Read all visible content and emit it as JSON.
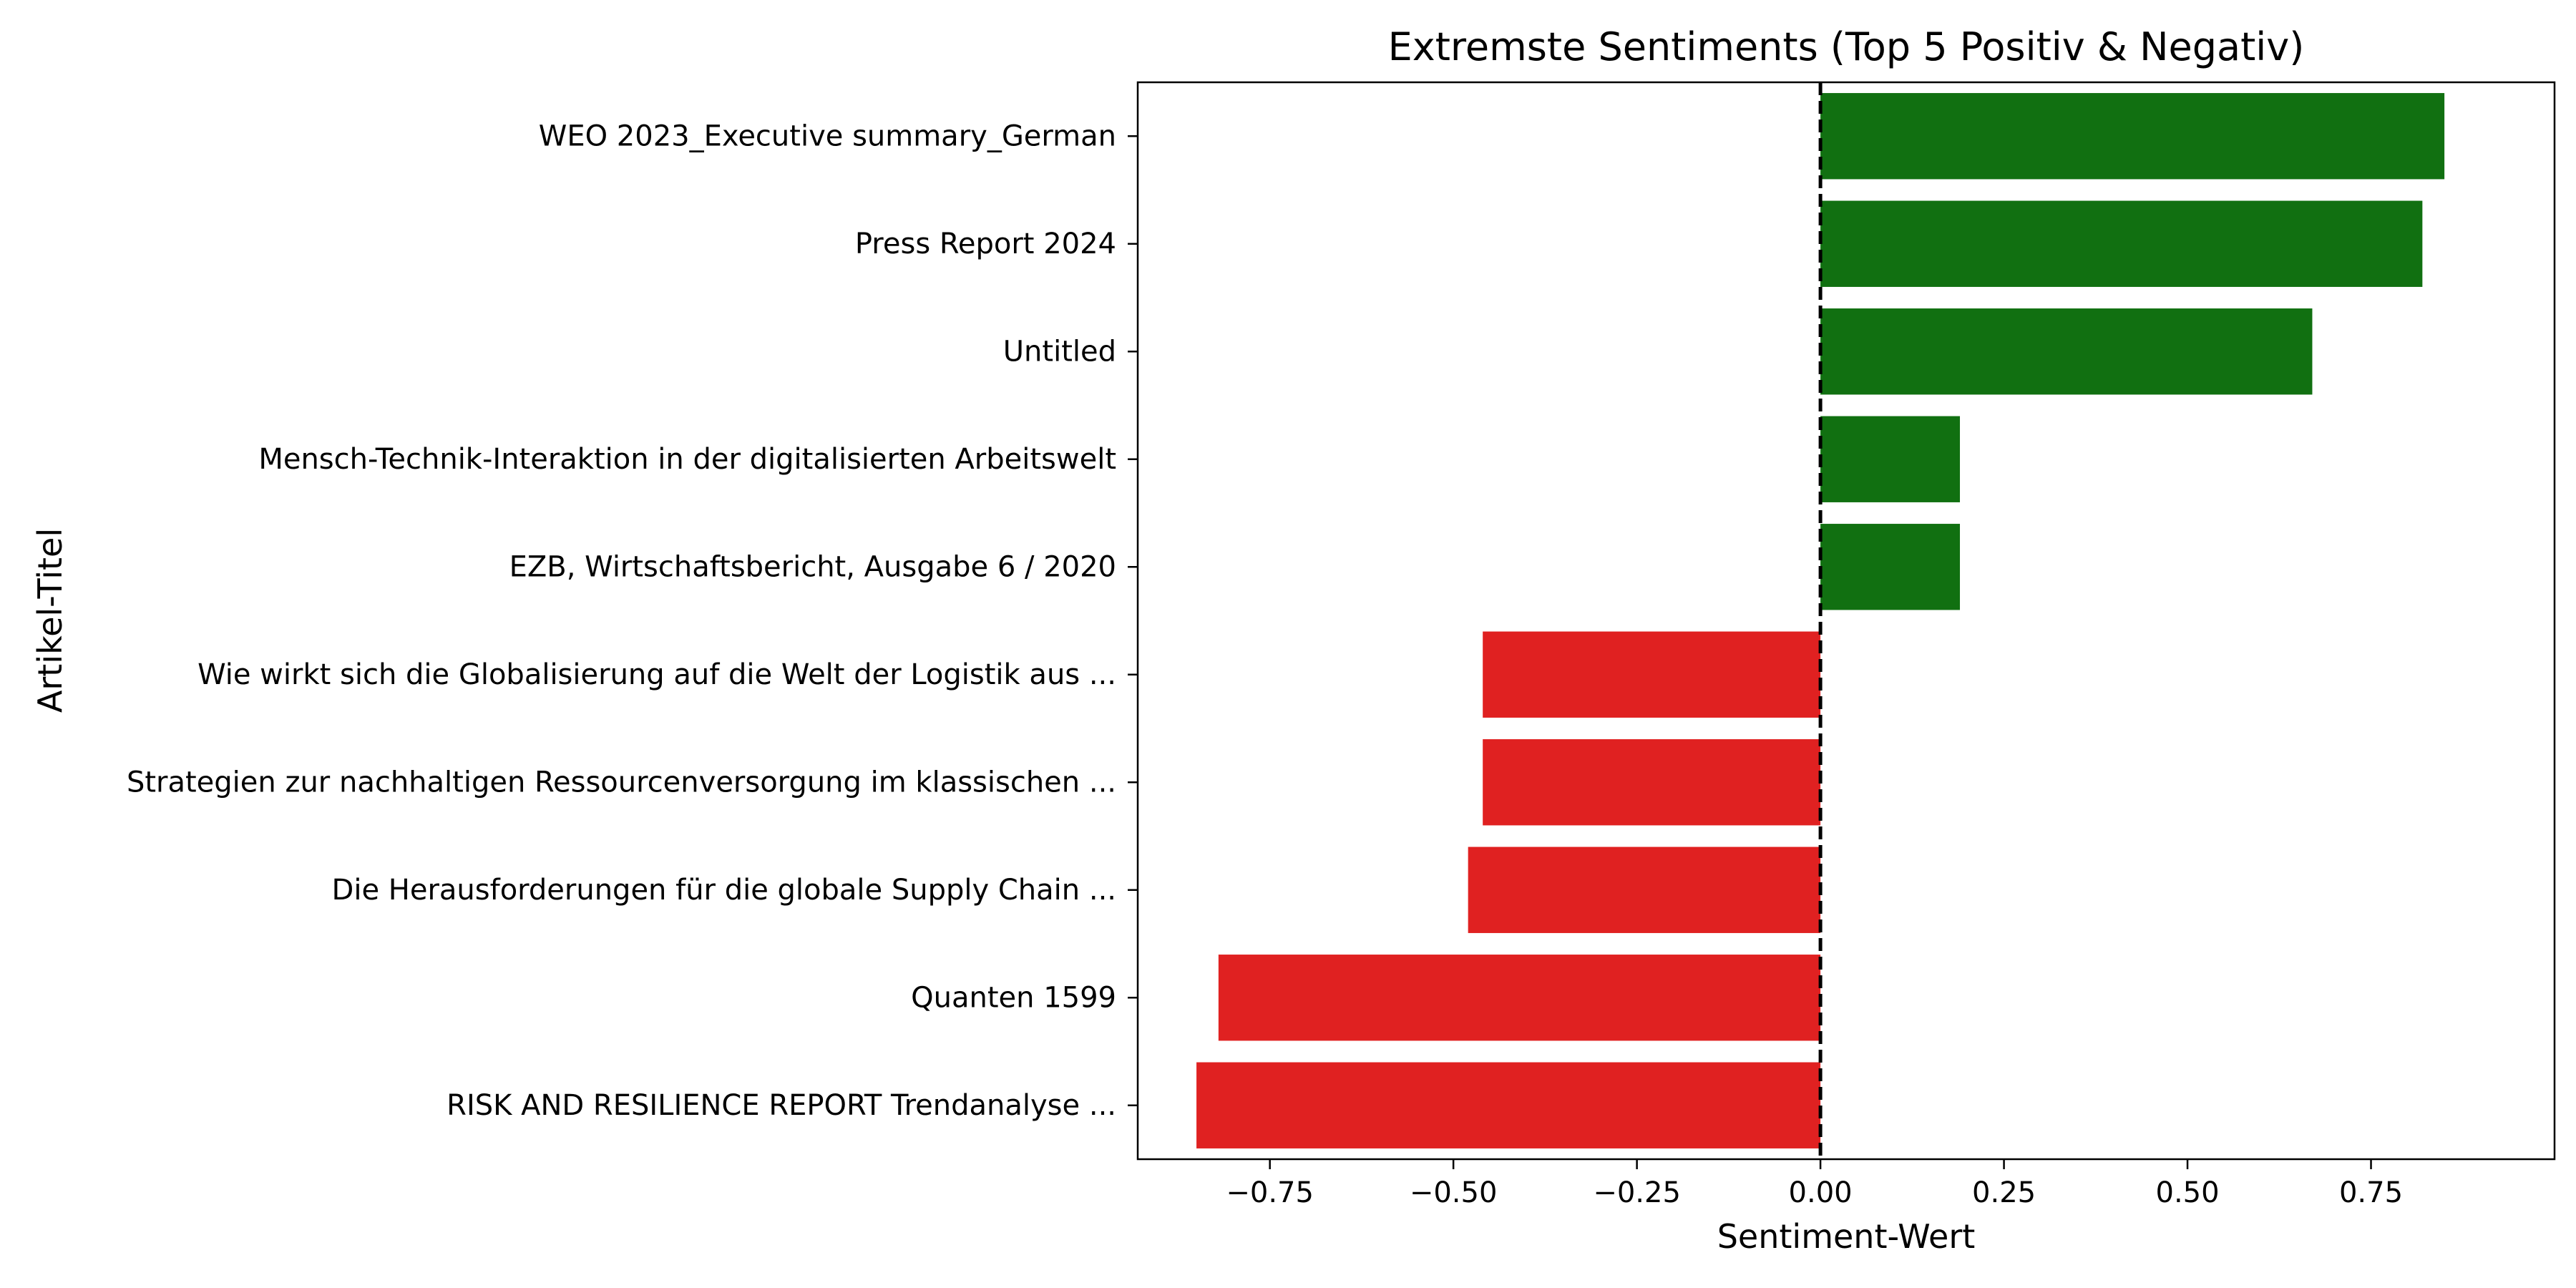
{
  "chart_data": {
    "type": "bar",
    "orientation": "horizontal",
    "title": "Extremste Sentiments (Top 5 Positiv & Negativ)",
    "xlabel": "Sentiment-Wert",
    "ylabel": "Artikel-Titel",
    "xlim": [
      -0.93,
      1.0
    ],
    "xticks": [
      -0.75,
      -0.5,
      -0.25,
      0.0,
      0.25,
      0.5,
      0.75
    ],
    "xtick_labels": [
      "−0.75",
      "−0.50",
      "−0.25",
      "0.00",
      "0.25",
      "0.50",
      "0.75"
    ],
    "reference_line": {
      "x": 0.0,
      "style": "dashed"
    },
    "grid": false,
    "colors": {
      "positive": "#117011",
      "negative": "#e02121"
    },
    "categories": [
      "WEO 2023_Executive summary_German",
      "Press Report 2024",
      "Untitled",
      "Mensch-Technik-Interaktion in der digitalisierten Arbeitswelt",
      "EZB, Wirtschaftsbericht, Ausgabe 6 / 2020",
      "Wie wirkt sich die Globalisierung auf die Welt der Logistik aus ...",
      "Strategien zur nachhaltigen Ressourcenversorgung im klassischen ...",
      "Die Herausforderungen für die globale Supply Chain ...",
      "Quanten 1599",
      "RISK AND RESILIENCE REPORT Trendanalyse ..."
    ],
    "values": [
      0.85,
      0.82,
      0.67,
      0.19,
      0.19,
      -0.46,
      -0.46,
      -0.48,
      -0.82,
      -0.85
    ]
  }
}
